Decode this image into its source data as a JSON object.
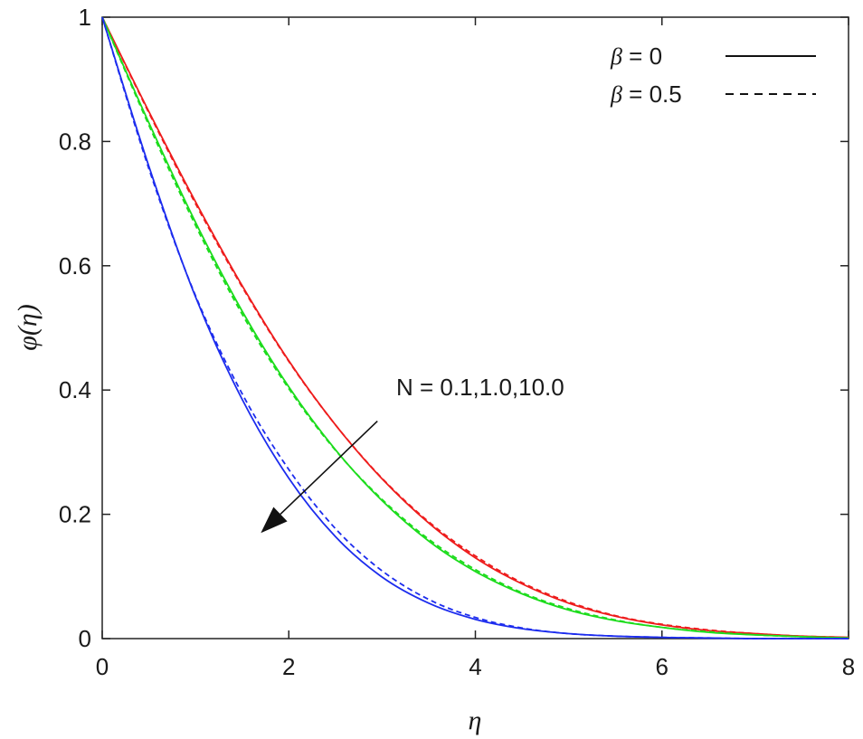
{
  "chart_data": {
    "type": "line",
    "xlabel": "η",
    "ylabel": "φ(η)",
    "xlim": [
      0,
      8
    ],
    "ylim": [
      0,
      1
    ],
    "xticks": [
      "0",
      "2",
      "4",
      "6",
      "8"
    ],
    "yticks": [
      "0",
      "0.2",
      "0.4",
      "0.6",
      "0.8",
      "1"
    ],
    "grid": false,
    "legend_position": "top-right",
    "legend": [
      {
        "symbol": "β",
        "label": " = 0",
        "linestyle": "solid"
      },
      {
        "symbol": "β",
        "label": " = 0.5",
        "linestyle": "dashed"
      }
    ],
    "annotation": {
      "text": "N = 0.1,1.0,10.0",
      "arrow": "down-left",
      "arrow_from": [
        2.95,
        0.35
      ],
      "arrow_to": [
        1.7,
        0.17
      ]
    },
    "x": [
      0,
      0.5,
      1,
      1.5,
      2,
      2.5,
      3,
      3.5,
      4,
      4.5,
      5,
      5.5,
      6,
      6.5,
      7,
      7.5,
      8
    ],
    "series": [
      {
        "color": "#ee1c1c",
        "linestyle": "solid",
        "values": [
          1.0,
          0.848,
          0.703,
          0.568,
          0.447,
          0.344,
          0.257,
          0.186,
          0.13,
          0.088,
          0.057,
          0.036,
          0.022,
          0.013,
          0.008,
          0.004,
          0.002
        ]
      },
      {
        "color": "#ee1c1c",
        "linestyle": "dashed",
        "values": [
          1.0,
          0.846,
          0.7,
          0.566,
          0.446,
          0.344,
          0.258,
          0.188,
          0.133,
          0.09,
          0.059,
          0.037,
          0.023,
          0.014,
          0.008,
          0.004,
          0.002
        ]
      },
      {
        "color": "#1cdc1c",
        "linestyle": "solid",
        "values": [
          1.0,
          0.83,
          0.67,
          0.527,
          0.405,
          0.304,
          0.222,
          0.157,
          0.108,
          0.072,
          0.046,
          0.029,
          0.018,
          0.01,
          0.006,
          0.003,
          0.001
        ]
      },
      {
        "color": "#1cdc1c",
        "linestyle": "dashed",
        "values": [
          1.0,
          0.826,
          0.665,
          0.522,
          0.402,
          0.303,
          0.224,
          0.16,
          0.111,
          0.074,
          0.048,
          0.03,
          0.018,
          0.011,
          0.006,
          0.003,
          0.001
        ]
      },
      {
        "color": "#1c2cee",
        "linestyle": "solid",
        "values": [
          1.0,
          0.76,
          0.55,
          0.385,
          0.258,
          0.164,
          0.099,
          0.057,
          0.031,
          0.016,
          0.008,
          0.004,
          0.002,
          0.001,
          0.0,
          0.0,
          0.0
        ]
      },
      {
        "color": "#1c2cee",
        "linestyle": "dashed",
        "values": [
          1.0,
          0.756,
          0.552,
          0.394,
          0.272,
          0.177,
          0.109,
          0.063,
          0.034,
          0.017,
          0.008,
          0.004,
          0.002,
          0.001,
          0.0,
          0.0,
          0.0
        ]
      }
    ]
  }
}
